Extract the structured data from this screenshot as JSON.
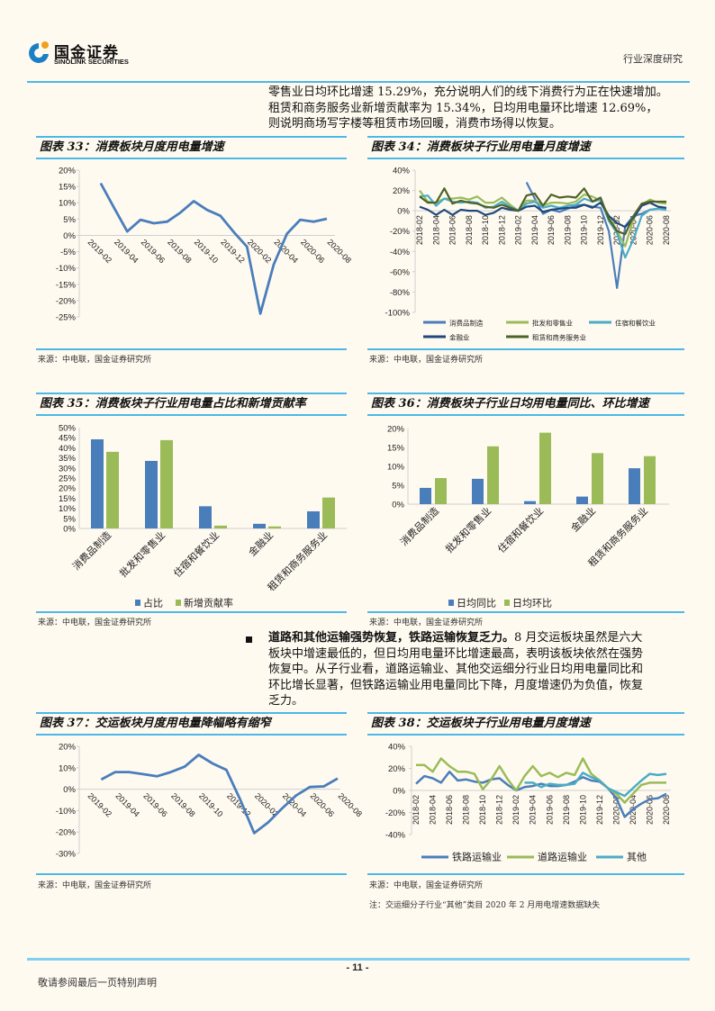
{
  "header": {
    "logo_cn": "国金证券",
    "logo_en": "SINOLINK SECURITIES",
    "report_type": "行业深度研究",
    "brand_color": "#4bb8e8"
  },
  "intro_paragraph": [
    "零售业日均环比增速 15.29%，充分说明人们的线下消费行为正在快速增加。",
    "租赁和商务服务业新增贡献率为 15.34%，日均用电量环比增速 12.69%，",
    "则说明商场写字楼等租赁市场回暖，消费市场得以恢复。"
  ],
  "bullet": {
    "bold": "道路和其他运输强势恢复，铁路运输恢复乏力。",
    "lines": [
      "8 月交运板块虽然是六大",
      "板块中增速最低的，但日均用电量环比增速最高，表明该板块依然在强势",
      "恢复中。从子行业看，道路运输业、其他交运细分行业日均用电量同比和",
      "环比增长显著，但铁路运输业用电量同比下降，月度增速仍为负值，恢复",
      "乏力。"
    ]
  },
  "figures": [
    {
      "title": "图表 33：消费板块月度用电量增速",
      "source": "来源：中电联，国金证券研究所"
    },
    {
      "title": "图表 34：消费板块子行业用电量月度增速",
      "source": "来源：中电联，国金证券研究所"
    },
    {
      "title": "图表 35：消费板块子行业用电量占比和新增贡献率",
      "source": "来源：中电联，国金证券研究所"
    },
    {
      "title": "图表 36：消费板块子行业日均用电量同比、环比增速",
      "source": "来源：中电联，国金证券研究所"
    },
    {
      "title": "图表 37：交运板块月度用电量降幅略有缩窄",
      "source": "来源：中电联，国金证券研究所"
    },
    {
      "title": "图表 38：交运板块子行业用电量月度增速",
      "source": "来源：中电联，国金证券研究所",
      "note": "注：交运细分子行业“其他”类目 2020 年 2 月用电增速数据缺失"
    }
  ],
  "footer": {
    "page_number": "- 11 -",
    "disclaimer": "敬请参阅最后一页特别声明"
  },
  "chart_data": [
    {
      "type": "line",
      "title": "图表 33：消费板块月度用电量增速",
      "ylim": [
        -25,
        20
      ],
      "unit": "%",
      "yticks": [
        "20%",
        "15%",
        "10%",
        "5%",
        "0%",
        "-5%",
        "-10%",
        "-15%",
        "-20%",
        "-25%"
      ],
      "x": [
        "2019-02",
        "2019-03",
        "2019-04",
        "2019-05",
        "2019-06",
        "2019-07",
        "2019-08",
        "2019-09",
        "2019-10",
        "2019-11",
        "2019-12",
        "2020-01",
        "2020-02",
        "2020-03",
        "2020-04",
        "2020-05",
        "2020-06",
        "2020-07",
        "2020-08"
      ],
      "series": [
        {
          "name": "消费板块",
          "color": "#4a7ebb",
          "values": [
            null,
            16,
            8.5,
            1.2,
            4.8,
            3.7,
            4.2,
            7,
            10.5,
            7.8,
            6,
            1,
            -3.5,
            -24,
            -9,
            0.5,
            4.8,
            4.2,
            5.1
          ]
        }
      ]
    },
    {
      "type": "line",
      "title": "图表 34：消费板块子行业用电量月度增速",
      "ylim": [
        -100,
        40
      ],
      "unit": "%",
      "yticks": [
        "40%",
        "20%",
        "0%",
        "-20%",
        "-40%",
        "-60%",
        "-80%",
        "-100%"
      ],
      "x": [
        "2018-02",
        "2018-03",
        "2018-04",
        "2018-05",
        "2018-06",
        "2018-07",
        "2018-08",
        "2018-09",
        "2018-10",
        "2018-11",
        "2018-12",
        "2019-01",
        "2019-02",
        "2019-03",
        "2019-04",
        "2019-05",
        "2019-06",
        "2019-07",
        "2019-08",
        "2019-09",
        "2019-10",
        "2019-11",
        "2019-12",
        "2020-01",
        "2020-02",
        "2020-03",
        "2020-04",
        "2020-05",
        "2020-06",
        "2020-07",
        "2020-08"
      ],
      "legend": "bottom",
      "series": [
        {
          "name": "消费品制造",
          "color": "#4a7ebb",
          "values": [
            null,
            null,
            null,
            null,
            null,
            null,
            null,
            null,
            null,
            null,
            null,
            null,
            null,
            28,
            12,
            -3,
            1,
            -1,
            2,
            5,
            6,
            4,
            3,
            -20,
            -76,
            -15,
            -5,
            -3,
            1,
            2,
            2
          ]
        },
        {
          "name": "批发和零售业",
          "color": "#9bbb59",
          "values": [
            20,
            9,
            8,
            12,
            12,
            13,
            11,
            14,
            8,
            8,
            13,
            6,
            0,
            10,
            10,
            5,
            8,
            8,
            7,
            9,
            16,
            14,
            10,
            -5,
            -20,
            -35,
            -8,
            6,
            11,
            8,
            7
          ]
        },
        {
          "name": "住宿和餐饮业",
          "color": "#4bacc6",
          "values": [
            14,
            15,
            5,
            12,
            9,
            8,
            9,
            8,
            3,
            4,
            9,
            4,
            0,
            7,
            9,
            3,
            5,
            3,
            5,
            6,
            12,
            9,
            11,
            -10,
            -22,
            -46,
            -28,
            -5,
            1,
            2,
            1
          ]
        },
        {
          "name": "金融业",
          "color": "#1f497d",
          "values": [
            4,
            1,
            -4,
            1,
            -4,
            1,
            0,
            0,
            -4,
            -2,
            3,
            1,
            0,
            4,
            5,
            -1,
            1,
            2,
            3,
            3,
            6,
            3,
            8,
            -5,
            -12,
            -16,
            -7,
            5,
            8,
            4,
            3
          ]
        },
        {
          "name": "租赁和商务服务业",
          "color": "#4f6228",
          "values": [
            14,
            8,
            8,
            22,
            7,
            10,
            8,
            7,
            4,
            3,
            6,
            3,
            0,
            15,
            17,
            5,
            16,
            13,
            14,
            13,
            22,
            9,
            13,
            -8,
            -20,
            -23,
            -5,
            7,
            9,
            9,
            9
          ]
        }
      ]
    },
    {
      "type": "bar",
      "title": "图表 35：消费板块子行业用电量占比和新增贡献率",
      "ylim": [
        0,
        50
      ],
      "unit": "%",
      "yticks": [
        "50%",
        "45%",
        "40%",
        "35%",
        "30%",
        "25%",
        "20%",
        "15%",
        "10%",
        "5%",
        "0%"
      ],
      "categories": [
        "消费品制造",
        "批发和零售业",
        "住宿和餐饮业",
        "金融业",
        "租赁和商务服务业"
      ],
      "legend": "bottom",
      "series": [
        {
          "name": "占比",
          "color": "#4a7ebb",
          "values": [
            44.2,
            33.5,
            11,
            2.3,
            8.5
          ]
        },
        {
          "name": "新增贡献率",
          "color": "#9bbb59",
          "values": [
            38,
            43.8,
            1.4,
            1,
            15.34
          ]
        }
      ]
    },
    {
      "type": "bar",
      "title": "图表 36：消费板块子行业日均用电量同比、环比增速",
      "ylim": [
        0,
        20
      ],
      "unit": "%",
      "yticks": [
        "20%",
        "15%",
        "10%",
        "5%",
        "0%"
      ],
      "categories": [
        "消费品制造",
        "批发和零售业",
        "住宿和餐饮业",
        "金融业",
        "租赁和商务服务业"
      ],
      "legend": "bottom",
      "series": [
        {
          "name": "日均同比",
          "color": "#4a7ebb",
          "values": [
            4.3,
            6.7,
            0.8,
            2,
            9.5
          ]
        },
        {
          "name": "日均环比",
          "color": "#9bbb59",
          "values": [
            6.9,
            15.29,
            18.9,
            13.5,
            12.69
          ]
        }
      ]
    },
    {
      "type": "line",
      "title": "图表 37：交运板块月度用电量降幅略有缩窄",
      "ylim": [
        -30,
        20
      ],
      "unit": "%",
      "yticks": [
        "20%",
        "10%",
        "0%",
        "-10%",
        "-20%",
        "-30%"
      ],
      "x": [
        "2019-02",
        "2019-03",
        "2019-04",
        "2019-05",
        "2019-06",
        "2019-07",
        "2019-08",
        "2019-09",
        "2019-10",
        "2019-11",
        "2019-12",
        "2020-01",
        "2020-02",
        "2020-03",
        "2020-04",
        "2020-05",
        "2020-06",
        "2020-07",
        "2020-08"
      ],
      "series": [
        {
          "name": "交运板块",
          "color": "#4a7ebb",
          "values": [
            null,
            4.5,
            8,
            8,
            7,
            6,
            8,
            10.5,
            16,
            12,
            9,
            -5,
            -20.5,
            -15.5,
            -9,
            -3,
            1,
            1.3,
            5
          ]
        }
      ]
    },
    {
      "type": "line",
      "title": "图表 38：交运板块子行业用电量月度增速",
      "ylim": [
        -40,
        40
      ],
      "unit": "%",
      "yticks": [
        "40%",
        "20%",
        "0%",
        "-20%",
        "-40%"
      ],
      "x": [
        "2018-02",
        "2018-03",
        "2018-04",
        "2018-05",
        "2018-06",
        "2018-07",
        "2018-08",
        "2018-09",
        "2018-10",
        "2018-11",
        "2018-12",
        "2019-01",
        "2019-02",
        "2019-03",
        "2019-04",
        "2019-05",
        "2019-06",
        "2019-07",
        "2019-08",
        "2019-09",
        "2019-10",
        "2019-11",
        "2019-12",
        "2020-01",
        "2020-02",
        "2020-03",
        "2020-04",
        "2020-05",
        "2020-06",
        "2020-07",
        "2020-08"
      ],
      "legend": "bottom",
      "series": [
        {
          "name": "铁路运输业",
          "color": "#4a7ebb",
          "values": [
            6,
            13,
            11,
            7,
            17,
            9,
            10,
            8,
            7,
            10,
            11,
            5,
            0,
            3,
            4,
            6,
            4,
            4,
            5,
            8,
            12,
            9,
            8,
            2,
            -7,
            -24,
            -17,
            -12,
            -8,
            -7,
            -3
          ]
        },
        {
          "name": "道路运输业",
          "color": "#9bbb59",
          "values": [
            23,
            23,
            17,
            29,
            22,
            17,
            17,
            15,
            1,
            10,
            22,
            10,
            0,
            13,
            22,
            13,
            16,
            12,
            16,
            14,
            29,
            15,
            9,
            2,
            -3,
            -11,
            -3,
            5,
            7,
            7,
            7
          ]
        },
        {
          "name": "其他",
          "color": "#4bacc6",
          "values": [
            null,
            null,
            null,
            null,
            null,
            null,
            null,
            null,
            null,
            null,
            null,
            null,
            null,
            7,
            7,
            3,
            6,
            5,
            5,
            6,
            16,
            12,
            9,
            2,
            null,
            -5,
            2,
            9,
            15,
            14,
            15
          ]
        }
      ]
    }
  ]
}
